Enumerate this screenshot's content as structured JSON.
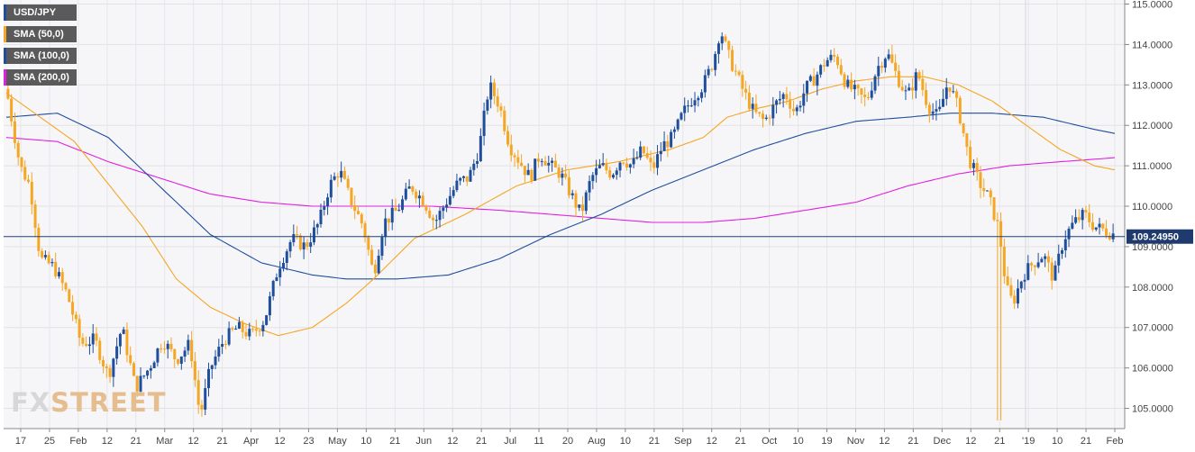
{
  "legend": [
    {
      "label": "USD/JPY",
      "color": "#1f4e9d"
    },
    {
      "label": "SMA (50,0)",
      "color": "#f5a623"
    },
    {
      "label": "SMA (100,0)",
      "color": "#1f4e9d"
    },
    {
      "label": "SMA (200,0)",
      "color": "#e020e0"
    }
  ],
  "logo": {
    "fx": "FX",
    "street": "STREET"
  },
  "chart_data": {
    "type": "candlestick",
    "symbol": "USD/JPY",
    "last_price": "109.24950",
    "ylim": [
      104.5,
      115.1
    ],
    "y_ticks": [
      "115.0000",
      "114.0000",
      "113.0000",
      "112.0000",
      "111.0000",
      "110.0000",
      "109.0000",
      "108.0000",
      "107.0000",
      "106.0000",
      "105.0000"
    ],
    "x_ticks": [
      "17",
      "25",
      "Feb",
      "12",
      "21",
      "Mar",
      "12",
      "21",
      "Apr",
      "12",
      "23",
      "May",
      "10",
      "21",
      "Jun",
      "12",
      "21",
      "Jul",
      "11",
      "20",
      "Aug",
      "10",
      "21",
      "Sep",
      "12",
      "21",
      "Oct",
      "10",
      "19",
      "Nov",
      "12",
      "21",
      "Dec",
      "12",
      "21",
      "'19",
      "10",
      "21",
      "Feb"
    ],
    "close_anchors": [
      [
        0,
        112.9
      ],
      [
        8,
        111.0
      ],
      [
        14,
        110.5
      ],
      [
        20,
        108.7
      ],
      [
        28,
        108.5
      ],
      [
        36,
        107.8
      ],
      [
        44,
        106.6
      ],
      [
        52,
        106.7
      ],
      [
        60,
        105.8
      ],
      [
        68,
        107.0
      ],
      [
        76,
        105.5
      ],
      [
        84,
        106.0
      ],
      [
        92,
        106.7
      ],
      [
        100,
        106.2
      ],
      [
        108,
        106.6
      ],
      [
        114,
        104.8
      ],
      [
        120,
        106.0
      ],
      [
        128,
        106.7
      ],
      [
        136,
        107.0
      ],
      [
        144,
        106.8
      ],
      [
        152,
        107.2
      ],
      [
        160,
        108.5
      ],
      [
        168,
        109.2
      ],
      [
        176,
        109.0
      ],
      [
        184,
        109.6
      ],
      [
        190,
        110.5
      ],
      [
        196,
        110.9
      ],
      [
        202,
        110.2
      ],
      [
        210,
        109.5
      ],
      [
        216,
        108.3
      ],
      [
        222,
        109.6
      ],
      [
        230,
        109.9
      ],
      [
        238,
        110.5
      ],
      [
        246,
        110.1
      ],
      [
        252,
        109.6
      ],
      [
        260,
        110.2
      ],
      [
        266,
        110.6
      ],
      [
        272,
        110.7
      ],
      [
        278,
        111.4
      ],
      [
        284,
        113.0
      ],
      [
        290,
        112.5
      ],
      [
        296,
        111.5
      ],
      [
        302,
        111.1
      ],
      [
        308,
        110.7
      ],
      [
        314,
        111.3
      ],
      [
        320,
        111.0
      ],
      [
        326,
        110.8
      ],
      [
        332,
        110.3
      ],
      [
        338,
        109.8
      ],
      [
        344,
        110.7
      ],
      [
        350,
        111.0
      ],
      [
        356,
        110.8
      ],
      [
        362,
        111.2
      ],
      [
        368,
        111.0
      ],
      [
        374,
        111.4
      ],
      [
        380,
        110.9
      ],
      [
        386,
        111.5
      ],
      [
        392,
        111.7
      ],
      [
        398,
        112.3
      ],
      [
        404,
        112.7
      ],
      [
        410,
        113.0
      ],
      [
        416,
        113.6
      ],
      [
        420,
        114.4
      ],
      [
        424,
        113.8
      ],
      [
        428,
        113.4
      ],
      [
        434,
        112.8
      ],
      [
        440,
        112.3
      ],
      [
        446,
        112.1
      ],
      [
        452,
        112.5
      ],
      [
        458,
        112.8
      ],
      [
        464,
        112.3
      ],
      [
        470,
        112.9
      ],
      [
        476,
        113.2
      ],
      [
        482,
        113.6
      ],
      [
        488,
        113.7
      ],
      [
        494,
        113.0
      ],
      [
        500,
        112.8
      ],
      [
        506,
        112.6
      ],
      [
        512,
        113.4
      ],
      [
        518,
        113.8
      ],
      [
        524,
        113.2
      ],
      [
        530,
        112.7
      ],
      [
        536,
        113.3
      ],
      [
        542,
        112.5
      ],
      [
        548,
        112.2
      ],
      [
        554,
        113.1
      ],
      [
        560,
        112.4
      ],
      [
        566,
        111.2
      ],
      [
        572,
        110.6
      ],
      [
        578,
        110.2
      ],
      [
        584,
        109.4
      ],
      [
        588,
        108.0
      ],
      [
        592,
        107.6
      ],
      [
        598,
        108.3
      ],
      [
        604,
        108.6
      ],
      [
        610,
        108.8
      ],
      [
        616,
        108.2
      ],
      [
        622,
        109.2
      ],
      [
        628,
        109.6
      ],
      [
        634,
        109.8
      ],
      [
        640,
        109.5
      ],
      [
        646,
        109.4
      ],
      [
        652,
        109.3
      ]
    ],
    "n_days": 653,
    "series": [
      {
        "name": "SMA (50,0)",
        "color": "#f5a623"
      },
      {
        "name": "SMA (100,0)",
        "color": "#1f4e9d"
      },
      {
        "name": "SMA (200,0)",
        "color": "#e020e0"
      }
    ],
    "sma_anchors": {
      "sma50": [
        [
          0,
          112.8
        ],
        [
          40,
          111.6
        ],
        [
          80,
          109.5
        ],
        [
          100,
          108.2
        ],
        [
          120,
          107.5
        ],
        [
          140,
          107.1
        ],
        [
          160,
          106.8
        ],
        [
          180,
          107.0
        ],
        [
          200,
          107.6
        ],
        [
          216,
          108.2
        ],
        [
          240,
          109.2
        ],
        [
          270,
          109.8
        ],
        [
          300,
          110.5
        ],
        [
          330,
          110.9
        ],
        [
          360,
          111.1
        ],
        [
          390,
          111.4
        ],
        [
          410,
          111.7
        ],
        [
          424,
          112.2
        ],
        [
          440,
          112.4
        ],
        [
          460,
          112.6
        ],
        [
          480,
          112.9
        ],
        [
          500,
          113.1
        ],
        [
          520,
          113.2
        ],
        [
          540,
          113.2
        ],
        [
          560,
          113.0
        ],
        [
          580,
          112.6
        ],
        [
          600,
          112.0
        ],
        [
          620,
          111.4
        ],
        [
          640,
          111.0
        ],
        [
          652,
          110.9
        ]
      ],
      "sma100": [
        [
          0,
          112.2
        ],
        [
          30,
          112.3
        ],
        [
          60,
          111.7
        ],
        [
          90,
          110.5
        ],
        [
          120,
          109.3
        ],
        [
          150,
          108.6
        ],
        [
          180,
          108.3
        ],
        [
          200,
          108.2
        ],
        [
          230,
          108.2
        ],
        [
          260,
          108.3
        ],
        [
          290,
          108.7
        ],
        [
          320,
          109.3
        ],
        [
          350,
          109.8
        ],
        [
          380,
          110.4
        ],
        [
          410,
          110.9
        ],
        [
          440,
          111.4
        ],
        [
          470,
          111.8
        ],
        [
          500,
          112.1
        ],
        [
          530,
          112.2
        ],
        [
          555,
          112.3
        ],
        [
          580,
          112.3
        ],
        [
          610,
          112.2
        ],
        [
          640,
          111.9
        ],
        [
          652,
          111.8
        ]
      ],
      "sma200": [
        [
          0,
          111.7
        ],
        [
          30,
          111.6
        ],
        [
          60,
          111.1
        ],
        [
          90,
          110.7
        ],
        [
          120,
          110.3
        ],
        [
          150,
          110.1
        ],
        [
          180,
          110.0
        ],
        [
          210,
          110.0
        ],
        [
          250,
          110.0
        ],
        [
          290,
          109.9
        ],
        [
          320,
          109.8
        ],
        [
          350,
          109.7
        ],
        [
          380,
          109.6
        ],
        [
          410,
          109.6
        ],
        [
          440,
          109.7
        ],
        [
          470,
          109.9
        ],
        [
          500,
          110.1
        ],
        [
          530,
          110.5
        ],
        [
          560,
          110.8
        ],
        [
          590,
          111.0
        ],
        [
          620,
          111.1
        ],
        [
          652,
          111.2
        ]
      ]
    }
  }
}
